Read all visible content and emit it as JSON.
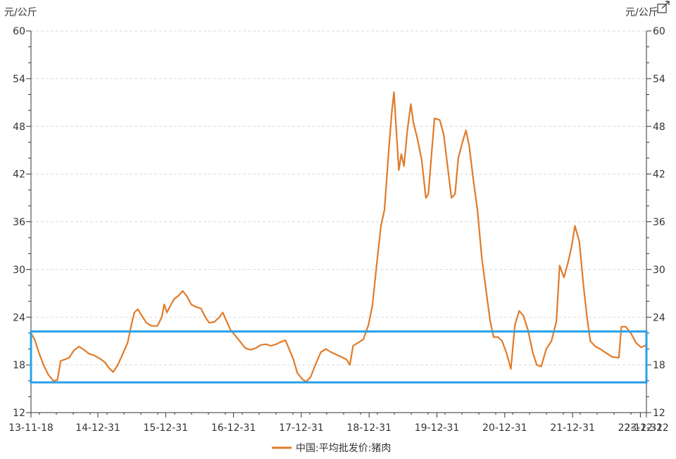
{
  "chart_data": {
    "type": "line",
    "y_unit_left": "元/公斤",
    "y_unit_right": "元/公斤",
    "ylim": [
      12,
      60
    ],
    "y_ticks": [
      12,
      18,
      24,
      30,
      36,
      42,
      48,
      54,
      60
    ],
    "x_tick_labels": [
      "13-11-18",
      "14-12-31",
      "15-12-31",
      "16-12-31",
      "17-12-31",
      "18-12-31",
      "19-12-31",
      "20-12-31",
      "21-12-31",
      "22-12-31",
      "23-12-22"
    ],
    "x_range": [
      "2013-11-18",
      "2023-12-22"
    ],
    "grid": true,
    "legend_position": "bottom",
    "series": [
      {
        "name": "中国:平均批发价:猪肉",
        "color": "#e07b2a",
        "points": [
          [
            "2013-11-18",
            22.0
          ],
          [
            "2013-12-10",
            21.2
          ],
          [
            "2014-01-05",
            19.5
          ],
          [
            "2014-02-01",
            18.0
          ],
          [
            "2014-03-01",
            16.8
          ],
          [
            "2014-04-01",
            16.0
          ],
          [
            "2014-04-25",
            16.1
          ],
          [
            "2014-05-15",
            18.5
          ],
          [
            "2014-06-10",
            18.7
          ],
          [
            "2014-07-05",
            18.9
          ],
          [
            "2014-08-01",
            19.8
          ],
          [
            "2014-09-01",
            20.3
          ],
          [
            "2014-10-01",
            19.9
          ],
          [
            "2014-11-01",
            19.4
          ],
          [
            "2014-12-01",
            19.2
          ],
          [
            "2015-01-05",
            18.8
          ],
          [
            "2015-02-05",
            18.3
          ],
          [
            "2015-03-01",
            17.6
          ],
          [
            "2015-03-25",
            17.1
          ],
          [
            "2015-04-20",
            17.9
          ],
          [
            "2015-05-20",
            19.3
          ],
          [
            "2015-06-20",
            20.8
          ],
          [
            "2015-07-10",
            22.8
          ],
          [
            "2015-07-30",
            24.6
          ],
          [
            "2015-08-20",
            25.0
          ],
          [
            "2015-09-10",
            24.3
          ],
          [
            "2015-10-10",
            23.3
          ],
          [
            "2015-11-10",
            22.9
          ],
          [
            "2015-12-15",
            22.9
          ],
          [
            "2016-01-10",
            24.0
          ],
          [
            "2016-01-25",
            25.6
          ],
          [
            "2016-02-10",
            24.6
          ],
          [
            "2016-03-01",
            25.4
          ],
          [
            "2016-03-25",
            26.3
          ],
          [
            "2016-04-20",
            26.7
          ],
          [
            "2016-05-15",
            27.3
          ],
          [
            "2016-06-10",
            26.6
          ],
          [
            "2016-07-05",
            25.6
          ],
          [
            "2016-08-01",
            25.3
          ],
          [
            "2016-09-01",
            25.1
          ],
          [
            "2016-09-25",
            24.1
          ],
          [
            "2016-10-20",
            23.3
          ],
          [
            "2016-11-20",
            23.4
          ],
          [
            "2016-12-20",
            24.0
          ],
          [
            "2017-01-10",
            24.6
          ],
          [
            "2017-01-30",
            23.6
          ],
          [
            "2017-02-25",
            22.4
          ],
          [
            "2017-03-25",
            21.7
          ],
          [
            "2017-04-25",
            20.9
          ],
          [
            "2017-05-25",
            20.1
          ],
          [
            "2017-06-25",
            19.9
          ],
          [
            "2017-07-25",
            20.1
          ],
          [
            "2017-08-25",
            20.5
          ],
          [
            "2017-09-25",
            20.6
          ],
          [
            "2017-10-25",
            20.4
          ],
          [
            "2017-11-25",
            20.6
          ],
          [
            "2017-12-25",
            20.9
          ],
          [
            "2018-01-20",
            21.1
          ],
          [
            "2018-02-15",
            19.8
          ],
          [
            "2018-03-10",
            18.6
          ],
          [
            "2018-04-01",
            17.0
          ],
          [
            "2018-05-01",
            16.2
          ],
          [
            "2018-05-25",
            15.9
          ],
          [
            "2018-06-20",
            16.5
          ],
          [
            "2018-07-20",
            18.1
          ],
          [
            "2018-08-20",
            19.6
          ],
          [
            "2018-09-20",
            20.0
          ],
          [
            "2018-10-20",
            19.6
          ],
          [
            "2018-11-20",
            19.3
          ],
          [
            "2018-12-20",
            19.0
          ],
          [
            "2019-01-20",
            18.7
          ],
          [
            "2019-02-10",
            18.0
          ],
          [
            "2019-03-01",
            20.4
          ],
          [
            "2019-04-01",
            20.8
          ],
          [
            "2019-05-01",
            21.2
          ],
          [
            "2019-06-01",
            23.0
          ],
          [
            "2019-06-25",
            25.5
          ],
          [
            "2019-07-20",
            30.5
          ],
          [
            "2019-08-15",
            35.5
          ],
          [
            "2019-09-05",
            37.5
          ],
          [
            "2019-10-01",
            45.0
          ],
          [
            "2019-10-20",
            50.0
          ],
          [
            "2019-11-01",
            52.3
          ],
          [
            "2019-11-15",
            47.5
          ],
          [
            "2019-11-30",
            42.5
          ],
          [
            "2019-12-15",
            44.5
          ],
          [
            "2019-12-31",
            43.0
          ],
          [
            "2020-01-20",
            47.5
          ],
          [
            "2020-02-10",
            50.8
          ],
          [
            "2020-02-25",
            48.5
          ],
          [
            "2020-03-20",
            46.5
          ],
          [
            "2020-04-15",
            43.8
          ],
          [
            "2020-05-10",
            39.0
          ],
          [
            "2020-05-25",
            39.5
          ],
          [
            "2020-06-15",
            45.0
          ],
          [
            "2020-07-01",
            49.0
          ],
          [
            "2020-08-01",
            48.8
          ],
          [
            "2020-08-25",
            47.0
          ],
          [
            "2020-09-20",
            42.5
          ],
          [
            "2020-10-10",
            39.0
          ],
          [
            "2020-11-01",
            39.5
          ],
          [
            "2020-11-20",
            44.0
          ],
          [
            "2020-12-15",
            46.0
          ],
          [
            "2021-01-05",
            47.5
          ],
          [
            "2021-01-25",
            45.5
          ],
          [
            "2021-02-20",
            41.0
          ],
          [
            "2021-03-15",
            37.5
          ],
          [
            "2021-04-10",
            31.5
          ],
          [
            "2021-05-05",
            27.5
          ],
          [
            "2021-05-30",
            23.5
          ],
          [
            "2021-06-20",
            21.5
          ],
          [
            "2021-07-15",
            21.5
          ],
          [
            "2021-08-10",
            21.0
          ],
          [
            "2021-09-05",
            19.5
          ],
          [
            "2021-10-01",
            17.5
          ],
          [
            "2021-10-25",
            23.0
          ],
          [
            "2021-11-20",
            24.8
          ],
          [
            "2021-12-15",
            24.2
          ],
          [
            "2022-01-10",
            22.5
          ],
          [
            "2022-02-10",
            19.5
          ],
          [
            "2022-03-05",
            18.0
          ],
          [
            "2022-04-01",
            17.8
          ],
          [
            "2022-05-01",
            20.0
          ],
          [
            "2022-06-01",
            21.0
          ],
          [
            "2022-07-01",
            23.5
          ],
          [
            "2022-07-20",
            30.5
          ],
          [
            "2022-08-15",
            29.0
          ],
          [
            "2022-09-10",
            31.0
          ],
          [
            "2022-10-01",
            33.0
          ],
          [
            "2022-10-20",
            35.5
          ],
          [
            "2022-11-15",
            33.5
          ],
          [
            "2022-12-10",
            28.0
          ],
          [
            "2022-12-31",
            24.0
          ],
          [
            "2023-01-20",
            21.0
          ],
          [
            "2023-02-20",
            20.3
          ],
          [
            "2023-03-20",
            20.0
          ],
          [
            "2023-04-25",
            19.5
          ],
          [
            "2023-06-01",
            19.0
          ],
          [
            "2023-07-10",
            18.9
          ],
          [
            "2023-07-25",
            22.8
          ],
          [
            "2023-08-20",
            22.8
          ],
          [
            "2023-09-20",
            22.0
          ],
          [
            "2023-10-20",
            20.8
          ],
          [
            "2023-11-20",
            20.2
          ],
          [
            "2023-12-22",
            20.5
          ]
        ]
      }
    ]
  },
  "annotation": {
    "type": "rectangle",
    "stroke_color": "#2aa0e8",
    "x_start": "2013-11-18",
    "x_end": "2023-12-22",
    "y_low": 15.8,
    "y_high": 22.2
  },
  "icons": {
    "expand": "expand-icon"
  }
}
